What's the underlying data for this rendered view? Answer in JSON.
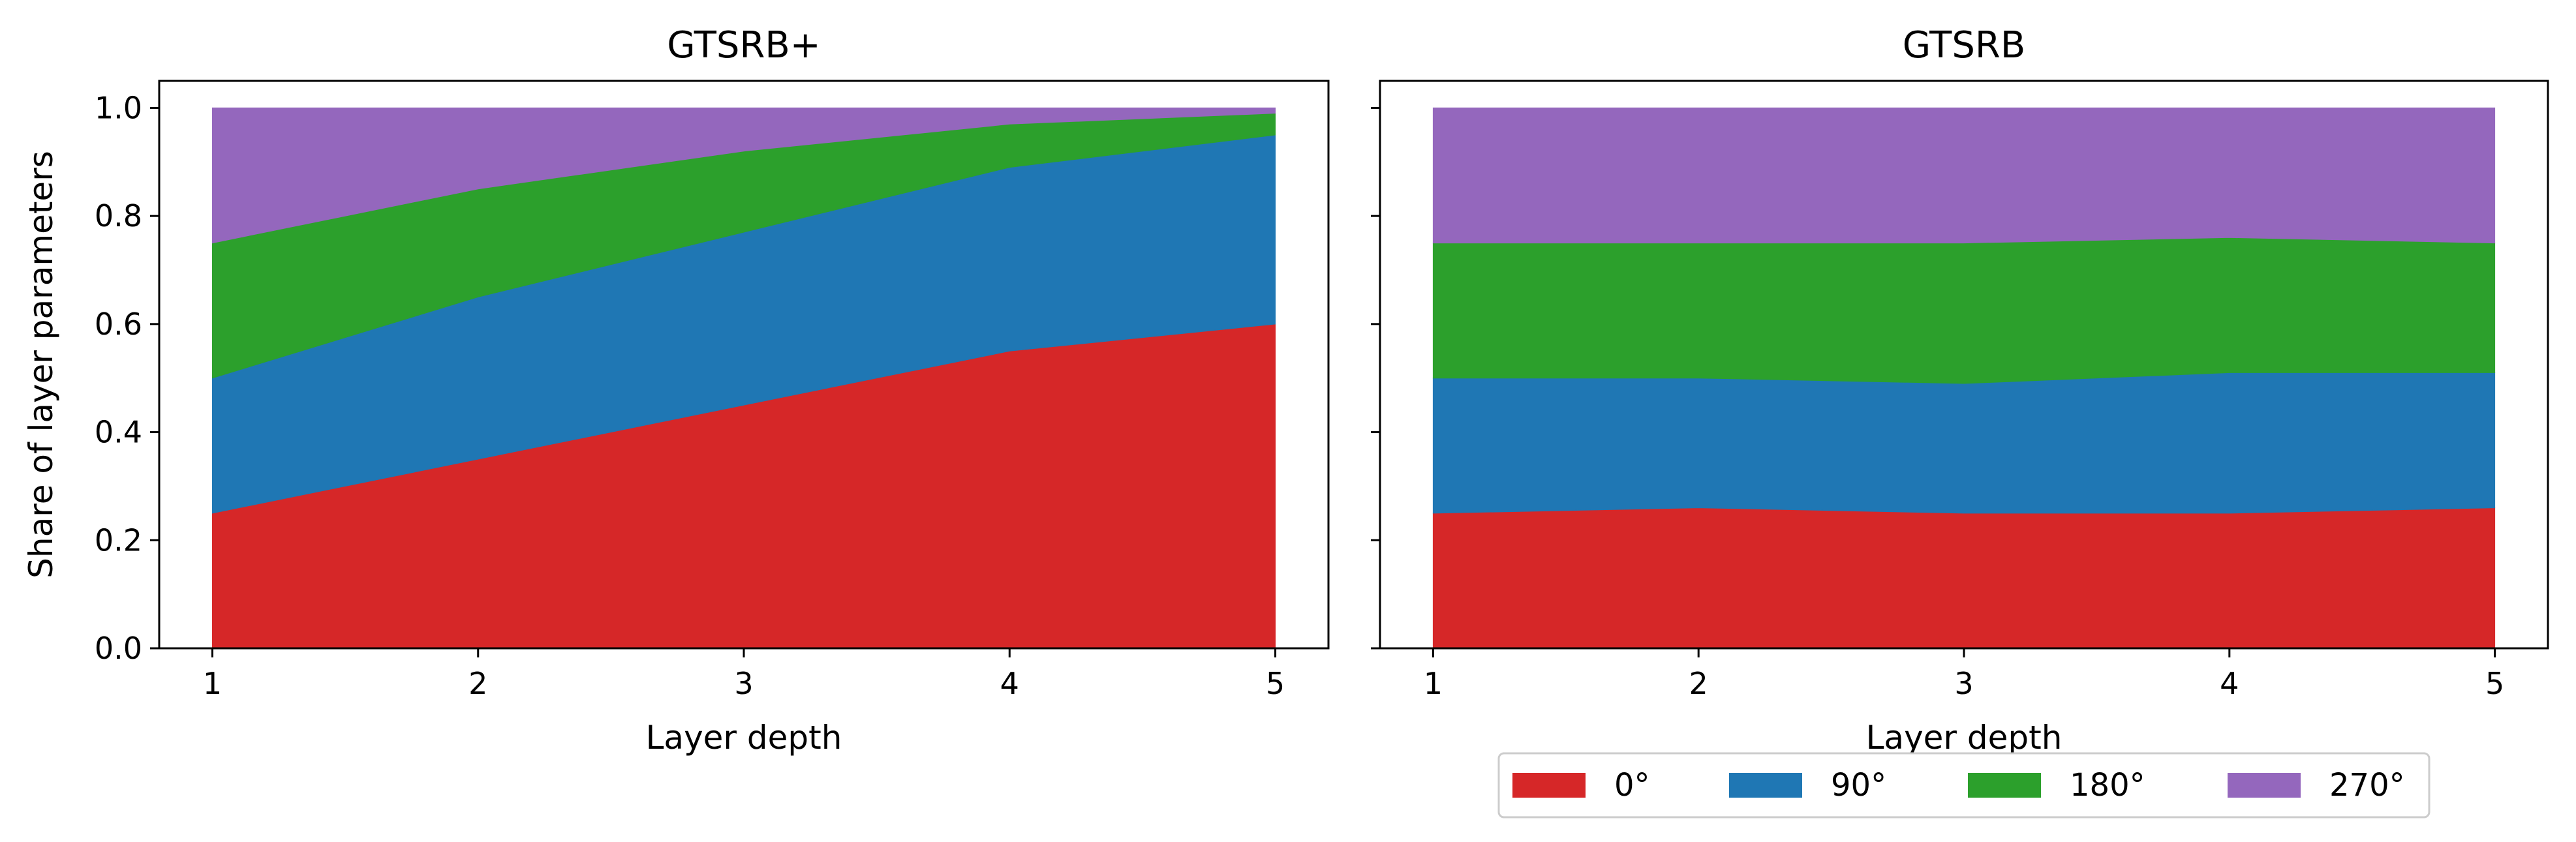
{
  "chart_data": [
    {
      "type": "area",
      "stacked": true,
      "title": "GTSRB+",
      "xlabel": "Layer depth",
      "ylabel": "Share of layer parameters",
      "x": [
        1,
        2,
        3,
        4,
        5
      ],
      "x_ticks": [
        "1",
        "2",
        "3",
        "4",
        "5"
      ],
      "y_ticks": [
        "0.0",
        "0.2",
        "0.4",
        "0.6",
        "0.8",
        "1.0"
      ],
      "xlim": [
        0.8,
        5.2
      ],
      "ylim": [
        0.0,
        1.05
      ],
      "grid": false,
      "series": [
        {
          "name": "0°",
          "color": "#d62728",
          "values": [
            0.25,
            0.35,
            0.45,
            0.55,
            0.6
          ]
        },
        {
          "name": "90°",
          "color": "#1f77b4",
          "values": [
            0.25,
            0.3,
            0.32,
            0.34,
            0.35
          ]
        },
        {
          "name": "180°",
          "color": "#2ca02c",
          "values": [
            0.25,
            0.2,
            0.15,
            0.08,
            0.04
          ]
        },
        {
          "name": "270°",
          "color": "#9467bd",
          "values": [
            0.25,
            0.15,
            0.08,
            0.03,
            0.01
          ]
        }
      ]
    },
    {
      "type": "area",
      "stacked": true,
      "title": "GTSRB",
      "xlabel": "Layer depth",
      "ylabel": "",
      "x": [
        1,
        2,
        3,
        4,
        5
      ],
      "x_ticks": [
        "1",
        "2",
        "3",
        "4",
        "5"
      ],
      "y_ticks": [],
      "xlim": [
        0.8,
        5.2
      ],
      "ylim": [
        0.0,
        1.05
      ],
      "grid": false,
      "series": [
        {
          "name": "0°",
          "color": "#d62728",
          "values": [
            0.25,
            0.26,
            0.25,
            0.25,
            0.26
          ]
        },
        {
          "name": "90°",
          "color": "#1f77b4",
          "values": [
            0.25,
            0.24,
            0.24,
            0.26,
            0.25
          ]
        },
        {
          "name": "180°",
          "color": "#2ca02c",
          "values": [
            0.25,
            0.25,
            0.26,
            0.25,
            0.24
          ]
        },
        {
          "name": "270°",
          "color": "#9467bd",
          "values": [
            0.25,
            0.25,
            0.25,
            0.24,
            0.25
          ]
        }
      ]
    }
  ],
  "legend": {
    "placement": "bottom-right",
    "items": [
      {
        "label": "0°",
        "color": "#d62728"
      },
      {
        "label": "90°",
        "color": "#1f77b4"
      },
      {
        "label": "180°",
        "color": "#2ca02c"
      },
      {
        "label": "270°",
        "color": "#9467bd"
      }
    ]
  }
}
